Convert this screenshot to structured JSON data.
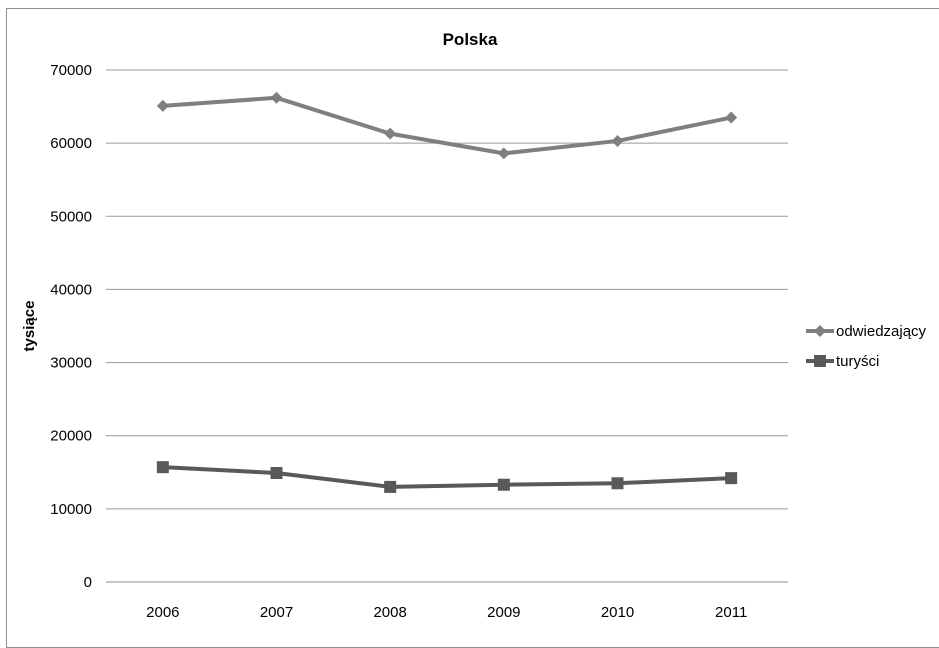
{
  "chart_data": {
    "type": "line",
    "title": "Polska",
    "xlabel": "",
    "ylabel": "tysiące",
    "categories": [
      "2006",
      "2007",
      "2008",
      "2009",
      "2010",
      "2011"
    ],
    "ylim": [
      0,
      70000
    ],
    "yticks": [
      0,
      10000,
      20000,
      30000,
      40000,
      50000,
      60000,
      70000
    ],
    "grid": true,
    "legend_position": "right",
    "series": [
      {
        "name": "odwiedzający",
        "marker": "diamond",
        "color": "#7f7f7f",
        "values": [
          65100,
          66200,
          61300,
          58600,
          60300,
          63500
        ]
      },
      {
        "name": "turyści",
        "marker": "square",
        "color": "#595959",
        "values": [
          15700,
          14900,
          13000,
          13300,
          13500,
          14200
        ]
      }
    ]
  }
}
